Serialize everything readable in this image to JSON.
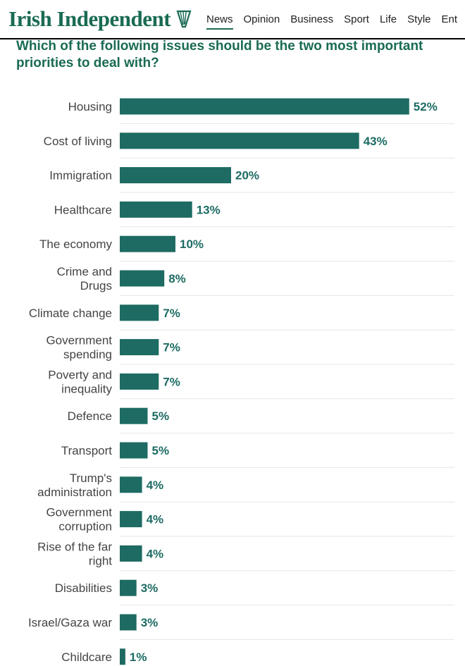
{
  "header": {
    "brand": "Irish Independent",
    "nav": [
      "News",
      "Opinion",
      "Business",
      "Sport",
      "Life",
      "Style",
      "Ent"
    ],
    "active_nav": "News"
  },
  "colors": {
    "brand": "#1a6b54",
    "bar": "#1d6b63",
    "grid": "#e6e6e6"
  },
  "chart_data": {
    "type": "bar",
    "orientation": "horizontal",
    "title": "Which of the following issues should be the two most important priorities to deal with?",
    "categories": [
      [
        "Housing"
      ],
      [
        "Cost of living"
      ],
      [
        "Immigration"
      ],
      [
        "Healthcare"
      ],
      [
        "The economy"
      ],
      [
        "Crime and",
        "Drugs"
      ],
      [
        "Climate change"
      ],
      [
        "Government",
        "spending"
      ],
      [
        "Poverty and",
        "inequality"
      ],
      [
        "Defence"
      ],
      [
        "Transport"
      ],
      [
        "Trump's",
        "administration"
      ],
      [
        "Government",
        "corruption"
      ],
      [
        "Rise of the far",
        "right"
      ],
      [
        "Disabilities"
      ],
      [
        "Israel/Gaza war"
      ],
      [
        "Childcare"
      ]
    ],
    "values": [
      52,
      43,
      20,
      13,
      10,
      8,
      7,
      7,
      7,
      5,
      5,
      4,
      4,
      4,
      3,
      3,
      1
    ],
    "value_labels": [
      "52%",
      "43%",
      "20%",
      "13%",
      "10%",
      "8%",
      "7%",
      "7%",
      "7%",
      "5%",
      "5%",
      "4%",
      "4%",
      "4%",
      "3%",
      "3%",
      "1%"
    ],
    "unit": "%",
    "xlim": [
      0,
      60
    ]
  }
}
